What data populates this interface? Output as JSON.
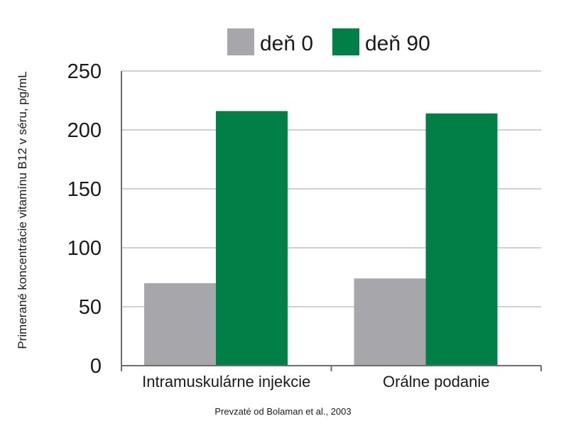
{
  "chart_data": {
    "type": "bar",
    "categories": [
      "Intramuskulárne injekcie",
      "Orálne podanie"
    ],
    "series": [
      {
        "name": "deň 0",
        "values": [
          70,
          74
        ],
        "color": "#a7a6ab"
      },
      {
        "name": "deň 90",
        "values": [
          216,
          214
        ],
        "color": "#008047"
      }
    ],
    "ylabel": "Primerané koncentrácie vitamínu B12 v séru, pg/mL",
    "xlabel": "",
    "ylim": [
      0,
      250
    ],
    "yticks": [
      0,
      50,
      100,
      150,
      200,
      250
    ],
    "grid": true,
    "legend_position": "top"
  },
  "source_note": "Prevzaté od Bolaman et al., 2003"
}
